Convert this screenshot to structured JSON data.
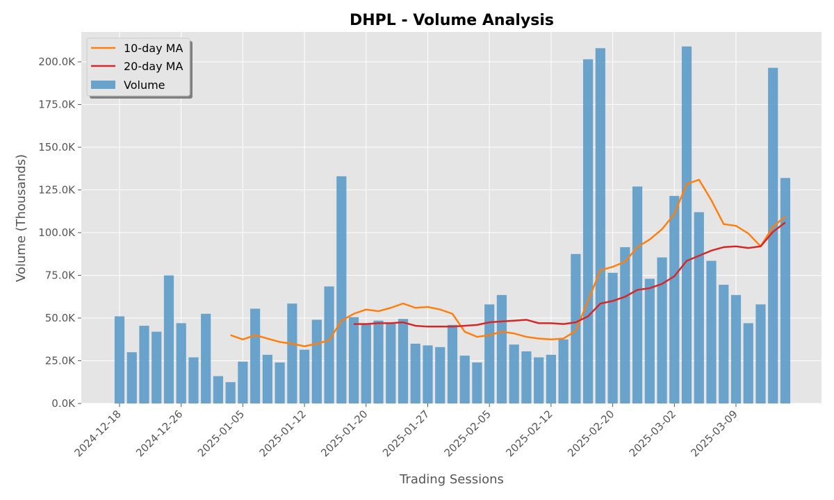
{
  "chart_data": {
    "type": "bar",
    "title": "DHPL - Volume Analysis",
    "xlabel": "Trading Sessions",
    "ylabel": "Volume (Thousands)",
    "ylim": [
      0,
      217500
    ],
    "yticks": [
      0,
      25000,
      50000,
      75000,
      100000,
      125000,
      150000,
      175000,
      200000
    ],
    "ytick_labels": [
      "0.0K",
      "25.0K",
      "50.0K",
      "75.0K",
      "100.0K",
      "125.0K",
      "150.0K",
      "175.0K",
      "200.0K"
    ],
    "xtick_labels": [
      "2024-12-18",
      "2024-12-26",
      "2025-01-05",
      "2025-01-12",
      "2025-01-20",
      "2025-01-27",
      "2025-02-05",
      "2025-02-12",
      "2025-02-20",
      "2025-03-02",
      "2025-03-09"
    ],
    "xtick_positions": [
      0,
      5,
      10,
      15,
      20,
      25,
      30,
      35,
      40,
      45,
      50
    ],
    "grid": true,
    "legend_position": "top-left",
    "colors": {
      "volume": "#5b9bc8",
      "ma10": "#ff7f0e",
      "ma20": "#d62728",
      "background": "#e5e5e5"
    },
    "series": [
      {
        "name": "Volume",
        "kind": "bar",
        "values": [
          51000,
          30000,
          45500,
          42000,
          75000,
          47000,
          27000,
          52500,
          16000,
          12500,
          24500,
          55500,
          28500,
          24000,
          58500,
          31500,
          49000,
          68500,
          133000,
          50500,
          47000,
          48500,
          47500,
          49500,
          35000,
          34000,
          33000,
          46000,
          28000,
          24000,
          58000,
          63500,
          34500,
          30500,
          27000,
          28500,
          37500,
          87500,
          201500,
          208000,
          76500,
          91500,
          127000,
          73000,
          85500,
          121500,
          209000,
          112000,
          83500,
          69500,
          63500,
          47000,
          58000,
          196500,
          132000
        ]
      },
      {
        "name": "10-day MA",
        "kind": "line",
        "values": [
          null,
          null,
          null,
          null,
          null,
          null,
          null,
          null,
          null,
          40000,
          37500,
          40000,
          38000,
          36000,
          35000,
          33500,
          35000,
          37000,
          48500,
          52500,
          55000,
          54000,
          56000,
          58500,
          56000,
          56500,
          55000,
          52500,
          42000,
          39000,
          40000,
          42000,
          41000,
          39000,
          38000,
          37500,
          38000,
          42500,
          60000,
          78000,
          80000,
          83000,
          91500,
          96000,
          102000,
          111000,
          128500,
          131000,
          119000,
          105000,
          104000,
          99500,
          92000,
          103500,
          109500
        ]
      },
      {
        "name": "20-day MA",
        "kind": "line",
        "values": [
          null,
          null,
          null,
          null,
          null,
          null,
          null,
          null,
          null,
          null,
          null,
          null,
          null,
          null,
          null,
          null,
          null,
          null,
          null,
          46500,
          46500,
          47000,
          47000,
          47500,
          45500,
          45000,
          45000,
          45000,
          45500,
          46000,
          47500,
          48000,
          48500,
          49000,
          47000,
          47000,
          46500,
          47500,
          51000,
          58500,
          60000,
          62500,
          66500,
          67500,
          70000,
          74500,
          83500,
          86500,
          89500,
          91500,
          92000,
          91000,
          92000,
          100500,
          106000
        ]
      }
    ]
  }
}
